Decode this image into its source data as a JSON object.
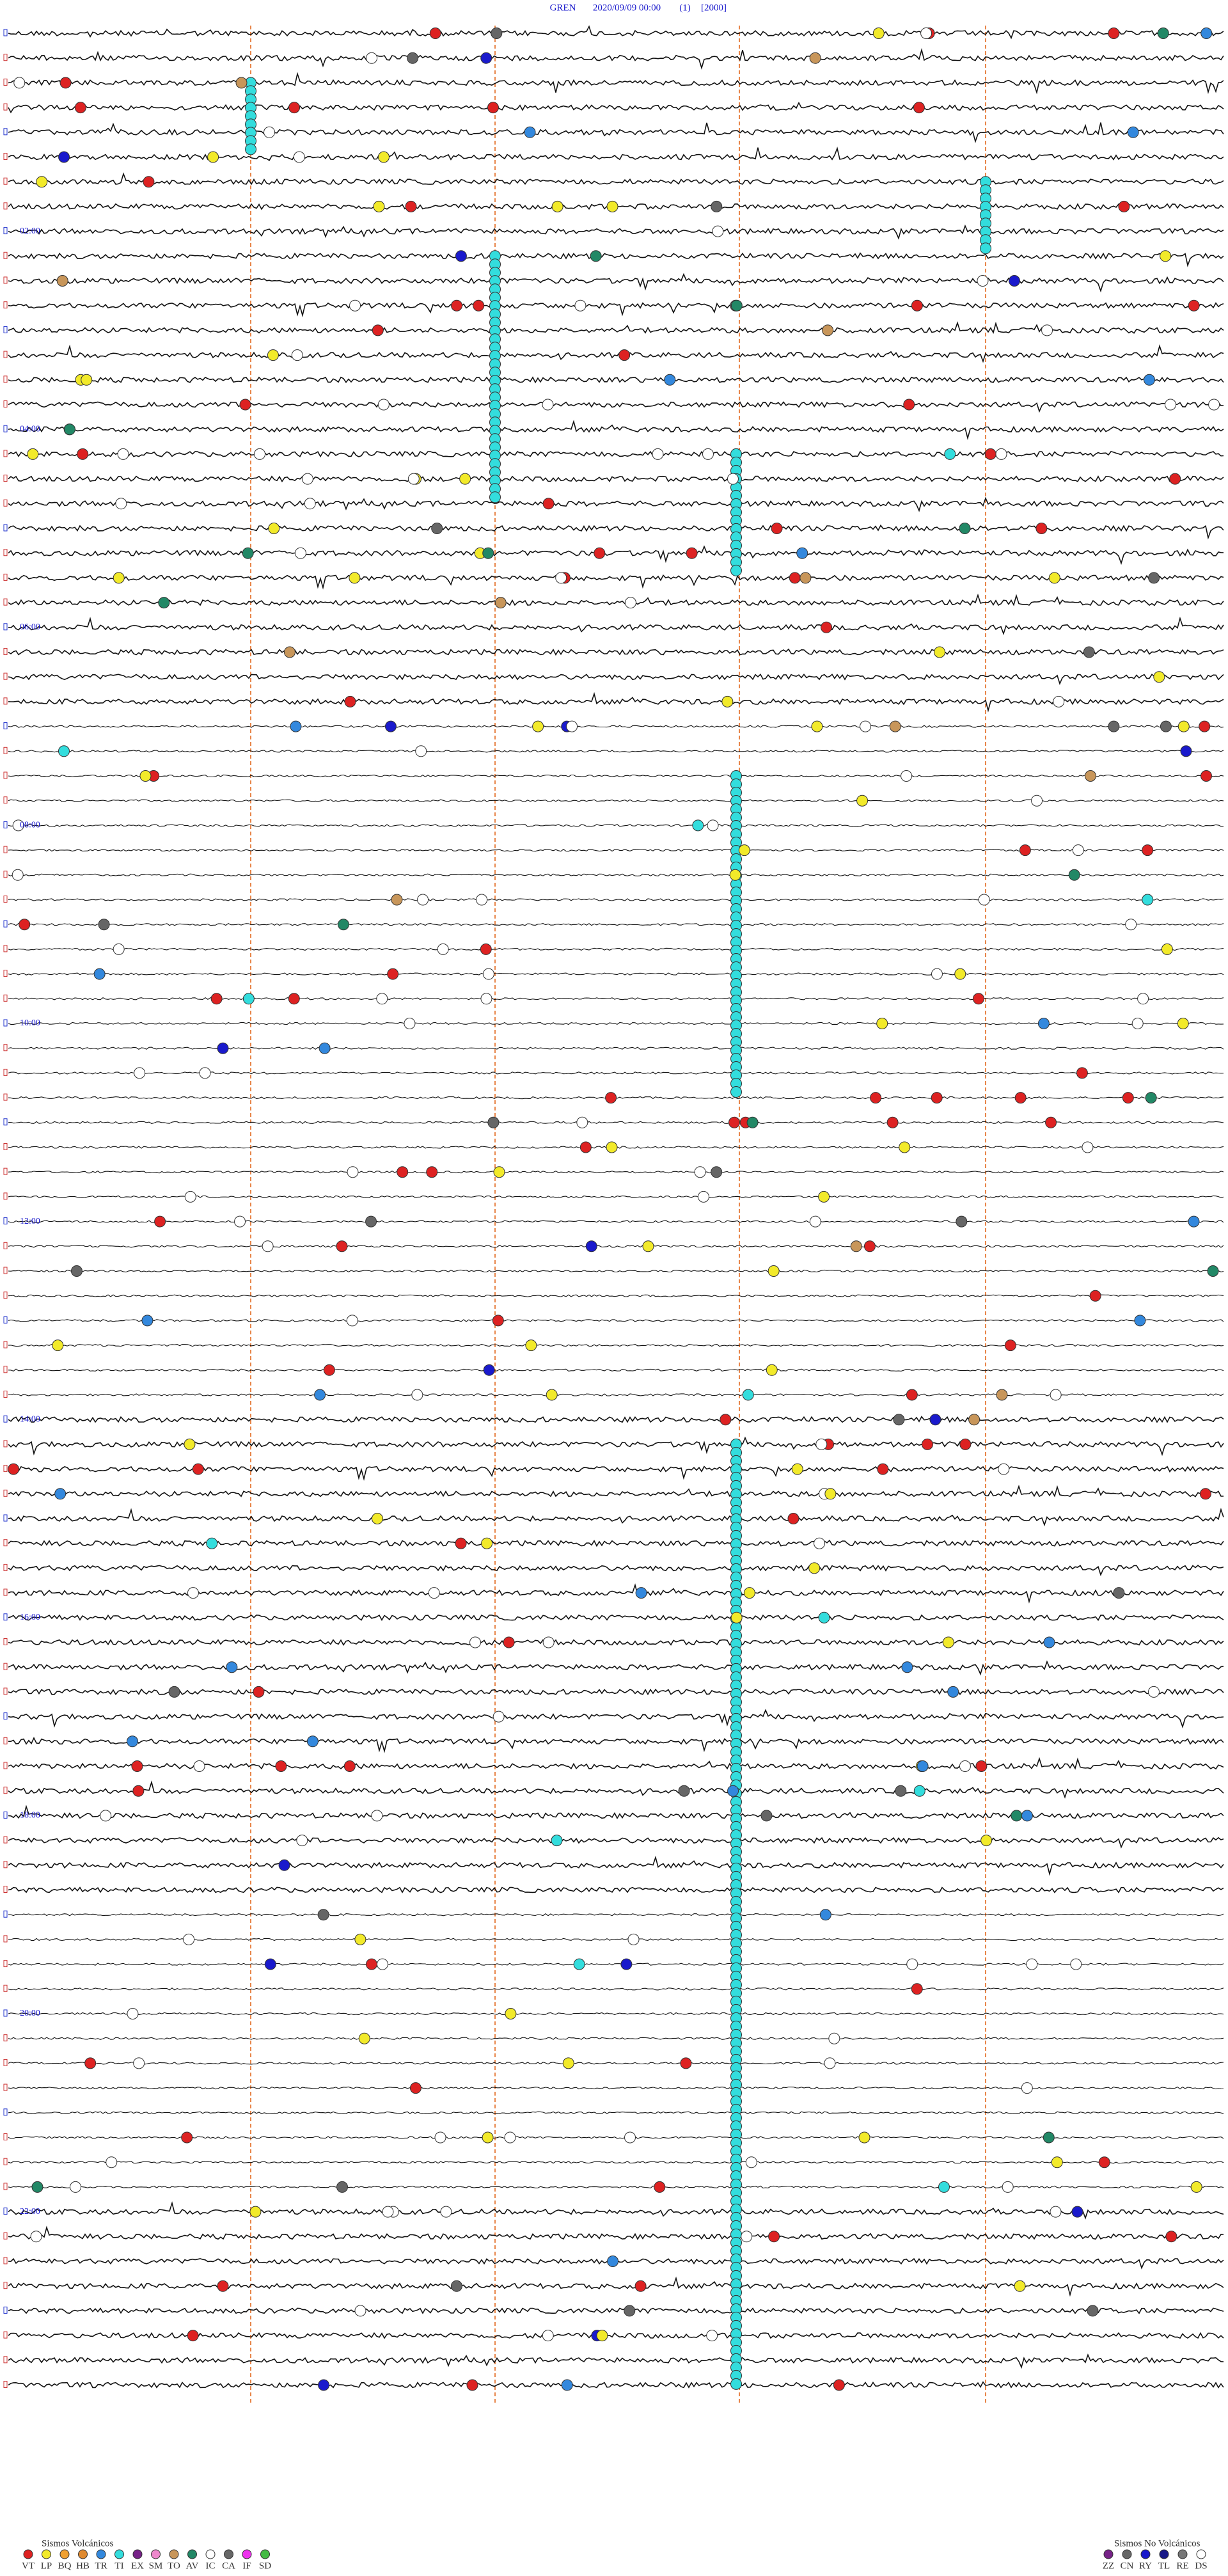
{
  "header": {
    "station": "GREN",
    "datetime": "2020/09/09 00:00",
    "channel": "(1)",
    "scale": "[2000]"
  },
  "time_labels": [
    "02:00",
    "04:00",
    "06:00",
    "08:00",
    "10:00",
    "12:00",
    "14:00",
    "16:00",
    "18:00",
    "20:00",
    "22:00"
  ],
  "legend_volcanic": {
    "title": "Sismos Volcánicos",
    "items": [
      "VT",
      "LP",
      "BQ",
      "HB",
      "TR",
      "TI",
      "EX",
      "SM",
      "TO",
      "AV",
      "IC",
      "CA",
      "IF",
      "SD"
    ]
  },
  "legend_non_volcanic": {
    "title": "Sismos No Volcánicos",
    "items": [
      "ZZ",
      "CN",
      "RY",
      "TL",
      "RE",
      "DS"
    ]
  }
}
